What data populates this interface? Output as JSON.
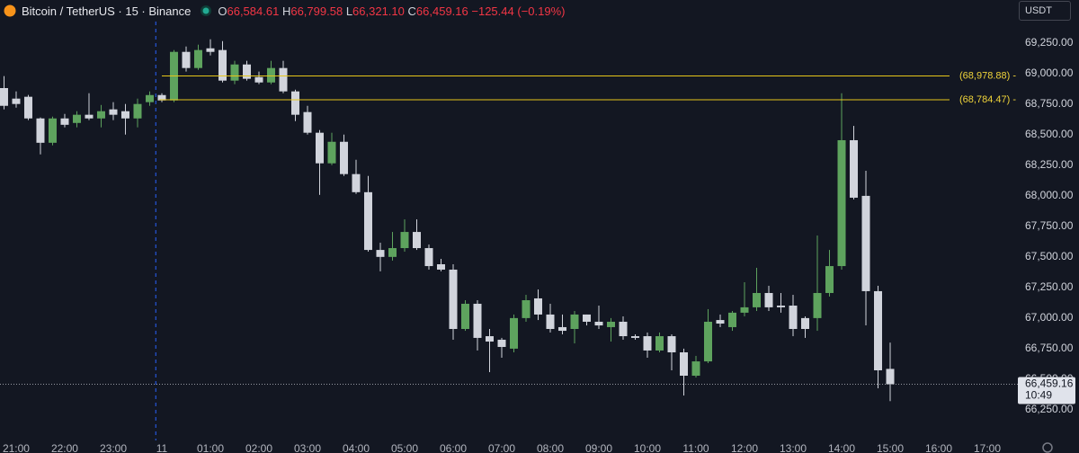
{
  "header": {
    "symbol": "Bitcoin / TetherUS · 15 · Binance",
    "o": "O",
    "open": "66,584.61",
    "h": "H",
    "high": "66,799.58",
    "l": "L",
    "low": "66,321.10",
    "c": "C",
    "close": "66,459.16",
    "change": "−125.44 (−0.19%)"
  },
  "currency": "USDT",
  "chart_data": {
    "type": "candlestick",
    "x": [
      -0.25,
      0,
      0.25,
      0.5,
      0.75,
      1,
      1.25,
      1.5,
      1.75,
      2,
      2.25,
      2.5,
      2.75,
      3,
      3.25,
      3.5,
      3.75,
      4,
      4.25,
      4.5,
      4.75,
      5,
      5.25,
      5.5,
      5.75,
      6,
      6.25,
      6.5,
      6.75,
      7,
      7.25,
      7.5,
      7.75,
      8,
      8.25,
      8.5,
      8.75,
      9,
      9.25,
      9.5,
      9.75,
      10,
      10.25,
      10.5,
      10.75,
      11,
      11.25,
      11.5,
      11.75,
      12,
      12.25,
      12.5,
      12.75,
      13,
      13.25,
      13.5,
      13.75,
      14,
      14.25,
      14.5,
      14.75,
      15,
      15.25,
      15.5,
      15.75,
      16,
      16.25,
      16.5,
      16.75,
      17,
      17.25,
      17.5,
      17.75,
      18
    ],
    "open": [
      68880,
      68794,
      68809,
      68632,
      68433,
      68632,
      68595,
      68662,
      68632,
      68706,
      68691,
      68632,
      68765,
      68823,
      68779,
      69176,
      69044,
      69205,
      69191,
      68941,
      69073,
      68970,
      68926,
      69044,
      68853,
      68684,
      68515,
      68265,
      68441,
      68177,
      68029,
      67557,
      67500,
      67572,
      67704,
      67572,
      67440,
      67396,
      66911,
      67117,
      66852,
      66823,
      66750,
      67000,
      67161,
      67029,
      66926,
      66911,
      67029,
      66970,
      66926,
      66970,
      66852,
      66852,
      66735,
      66852,
      66720,
      66529,
      66646,
      66984,
      66926,
      67044,
      67088,
      67205,
      67102,
      67102,
      67000,
      67000,
      67205,
      67425,
      68454,
      67999,
      67220,
      66584.61
    ],
    "high": [
      68978,
      68853,
      68824,
      68640,
      68647,
      68669,
      68691,
      68838,
      68742,
      68765,
      68750,
      68794,
      68853,
      68838,
      69191,
      69220,
      69235,
      69279,
      69264,
      69103,
      69103,
      69015,
      69103,
      69103,
      68867,
      68735,
      68537,
      68515,
      68500,
      68294,
      68162,
      67616,
      67704,
      67807,
      67807,
      67601,
      67484,
      67440,
      67146,
      67146,
      66911,
      66838,
      67029,
      67190,
      67234,
      67117,
      67029,
      67058,
      67029,
      67102,
      67000,
      67014,
      66867,
      66882,
      66882,
      66867,
      66750,
      66691,
      67073,
      67029,
      67058,
      67293,
      67411,
      67264,
      67205,
      67190,
      67014,
      67675,
      67557,
      68838,
      68571,
      68204,
      67264,
      66799.58
    ],
    "low": [
      68706,
      68720,
      68618,
      68338,
      68412,
      68559,
      68559,
      68618,
      68559,
      68618,
      68500,
      68559,
      68735,
      68765,
      68765,
      69015,
      69029,
      69147,
      68926,
      68912,
      68941,
      68912,
      68912,
      68838,
      68610,
      68500,
      68007,
      68250,
      68162,
      68015,
      67543,
      67382,
      67470,
      67543,
      67557,
      67396,
      67382,
      66823,
      66896,
      66735,
      66558,
      66676,
      66720,
      66970,
      66984,
      66882,
      66867,
      66793,
      66940,
      66911,
      66808,
      66823,
      66823,
      66676,
      66720,
      66573,
      66367,
      66514,
      66632,
      66926,
      66896,
      67014,
      67058,
      67058,
      67044,
      66852,
      66838,
      66896,
      67176,
      67396,
      67970,
      66940,
      66426,
      66321.1
    ],
    "close": [
      68735,
      68750,
      68632,
      68433,
      68632,
      68580,
      68662,
      68632,
      68691,
      68662,
      68632,
      68750,
      68823,
      68779,
      69176,
      69044,
      69191,
      69176,
      68941,
      69073,
      68956,
      68926,
      69044,
      68853,
      68662,
      68515,
      68265,
      68441,
      68177,
      68029,
      67557,
      67500,
      67572,
      67704,
      67572,
      67425,
      67396,
      66911,
      67117,
      66838,
      66808,
      66764,
      67000,
      67146,
      67029,
      66911,
      66896,
      67029,
      66970,
      66940,
      66970,
      66852,
      66838,
      66735,
      66852,
      66720,
      66529,
      66646,
      66970,
      66955,
      67044,
      67088,
      67205,
      67088,
      67088,
      66911,
      66911,
      67205,
      67425,
      68454,
      67984,
      67220,
      66573,
      66459.16
    ],
    "up_color": "#5ea35e",
    "down_color": "#d1d4dc",
    "xlim": [
      -0.333,
      20.222
    ],
    "ylim": [
      66000,
      69600
    ],
    "xticks": [
      {
        "value": 0,
        "label": "21:00"
      },
      {
        "value": 1,
        "label": "22:00"
      },
      {
        "value": 2,
        "label": "23:00"
      },
      {
        "value": 3,
        "label": "11"
      },
      {
        "value": 4,
        "label": "01:00"
      },
      {
        "value": 5,
        "label": "02:00"
      },
      {
        "value": 6,
        "label": "03:00"
      },
      {
        "value": 7,
        "label": "04:00"
      },
      {
        "value": 8,
        "label": "05:00"
      },
      {
        "value": 9,
        "label": "06:00"
      },
      {
        "value": 10,
        "label": "07:00"
      },
      {
        "value": 11,
        "label": "08:00"
      },
      {
        "value": 12,
        "label": "09:00"
      },
      {
        "value": 13,
        "label": "10:00"
      },
      {
        "value": 14,
        "label": "11:00"
      },
      {
        "value": 15,
        "label": "12:00"
      },
      {
        "value": 16,
        "label": "13:00"
      },
      {
        "value": 17,
        "label": "14:00"
      },
      {
        "value": 18,
        "label": "15:00"
      },
      {
        "value": 19,
        "label": "16:00"
      },
      {
        "value": 20,
        "label": "17:00"
      }
    ],
    "yticks": [
      {
        "value": 66250,
        "label": "66,250.00"
      },
      {
        "value": 66500,
        "label": "66,500.00"
      },
      {
        "value": 66750,
        "label": "66,750.00"
      },
      {
        "value": 67000,
        "label": "67,000.00"
      },
      {
        "value": 67250,
        "label": "67,250.00"
      },
      {
        "value": 67500,
        "label": "67,500.00"
      },
      {
        "value": 67750,
        "label": "67,750.00"
      },
      {
        "value": 68000,
        "label": "68,000.00"
      },
      {
        "value": 68250,
        "label": "68,250.00"
      },
      {
        "value": 68500,
        "label": "68,500.00"
      },
      {
        "value": 68750,
        "label": "68,750.00"
      },
      {
        "value": 69000,
        "label": "69,000.00"
      },
      {
        "value": 69250,
        "label": "69,250.00"
      }
    ],
    "hlines": [
      {
        "value": 68978.88,
        "label": "(68,978.88) -",
        "x_start": 3
      },
      {
        "value": 68784.47,
        "label": "(68,784.47) -",
        "x_start": 2.95
      }
    ],
    "session_break": 2.875,
    "last_price": {
      "value": 66459.16,
      "label": "66,459.16"
    },
    "countdown": "10:49"
  }
}
